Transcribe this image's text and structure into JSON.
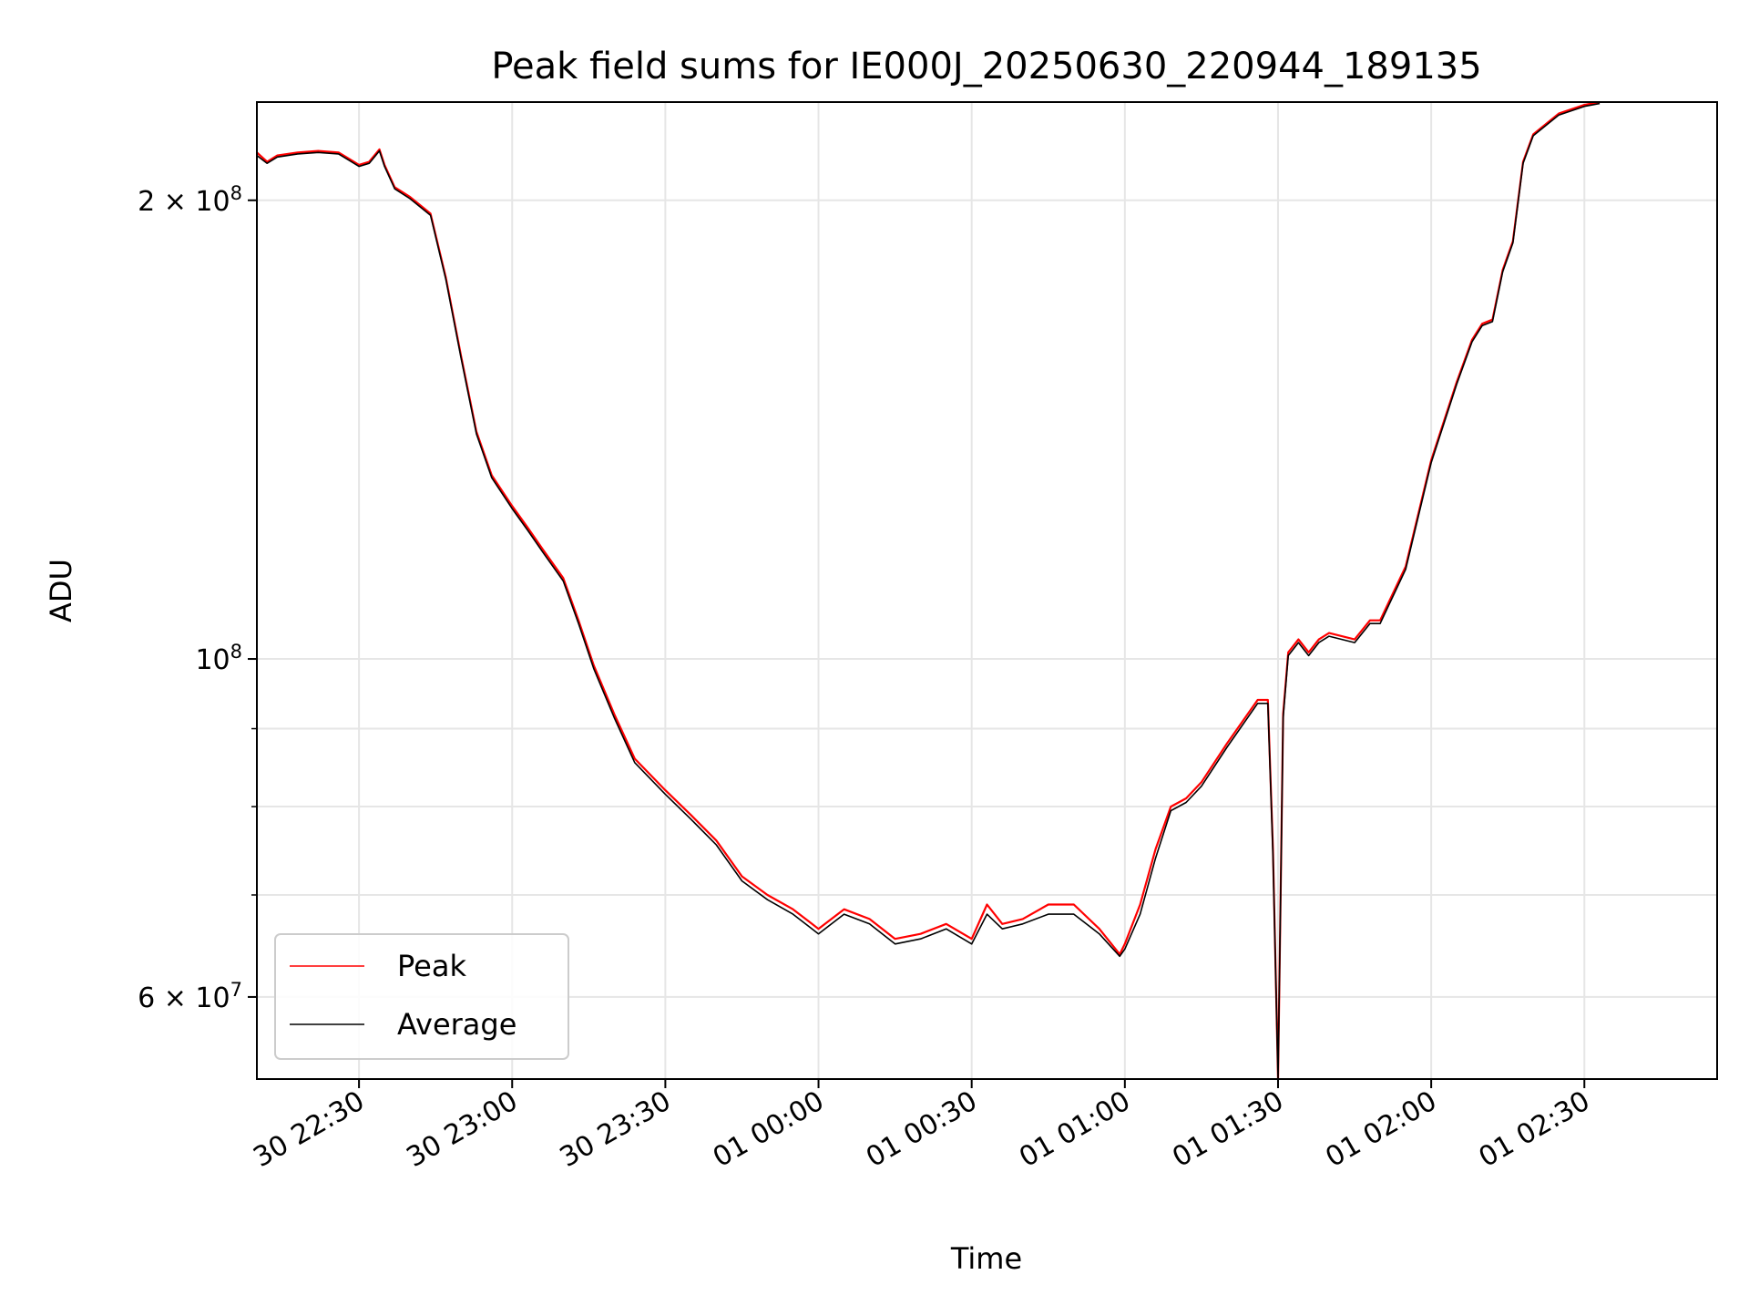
{
  "chart_data": {
    "type": "line",
    "title": "Peak field sums for IE000J_20250630_220944_189135",
    "xlabel": "Time",
    "ylabel": "ADU",
    "yscale": "log",
    "grid": true,
    "legend_position": "lower-left",
    "xlim": [
      "2025-06-30T22:10",
      "2025-07-01T02:56"
    ],
    "ylim": [
      53000000,
      232000000
    ],
    "x_ticks": [
      {
        "value": "2025-06-30T22:30",
        "label": "30 22:30"
      },
      {
        "value": "2025-06-30T23:00",
        "label": "30 23:00"
      },
      {
        "value": "2025-06-30T23:30",
        "label": "30 23:30"
      },
      {
        "value": "2025-07-01T00:00",
        "label": "01 00:00"
      },
      {
        "value": "2025-07-01T00:30",
        "label": "01 00:30"
      },
      {
        "value": "2025-07-01T01:00",
        "label": "01 01:00"
      },
      {
        "value": "2025-07-01T01:30",
        "label": "01 01:30"
      },
      {
        "value": "2025-07-01T02:00",
        "label": "01 02:00"
      },
      {
        "value": "2025-07-01T02:30",
        "label": "01 02:30"
      }
    ],
    "y_ticks": [
      {
        "value": 200000000,
        "label_base": "2 × 10",
        "label_exp": "8"
      },
      {
        "value": 100000000,
        "label_base": "10",
        "label_exp": "8"
      },
      {
        "value": 60000000,
        "label_base": "6 × 10",
        "label_exp": "7"
      }
    ],
    "y_minor_ticks": [
      70000000,
      80000000,
      90000000
    ],
    "series": [
      {
        "name": "Peak",
        "color": "#ff0000",
        "x": [
          "2025-06-30T22:10",
          "2025-06-30T22:12",
          "2025-06-30T22:14",
          "2025-06-30T22:18",
          "2025-06-30T22:22",
          "2025-06-30T22:26",
          "2025-06-30T22:30",
          "2025-06-30T22:32",
          "2025-06-30T22:34",
          "2025-06-30T22:35",
          "2025-06-30T22:37",
          "2025-06-30T22:40",
          "2025-06-30T22:44",
          "2025-06-30T22:47",
          "2025-06-30T22:50",
          "2025-06-30T22:53",
          "2025-06-30T22:56",
          "2025-06-30T23:00",
          "2025-06-30T23:03",
          "2025-06-30T23:06",
          "2025-06-30T23:10",
          "2025-06-30T23:13",
          "2025-06-30T23:16",
          "2025-06-30T23:20",
          "2025-06-30T23:24",
          "2025-06-30T23:30",
          "2025-06-30T23:35",
          "2025-06-30T23:40",
          "2025-06-30T23:45",
          "2025-06-30T23:50",
          "2025-06-30T23:55",
          "2025-07-01T00:00",
          "2025-07-01T00:05",
          "2025-07-01T00:10",
          "2025-07-01T00:15",
          "2025-07-01T00:20",
          "2025-07-01T00:25",
          "2025-07-01T00:30",
          "2025-07-01T00:33",
          "2025-07-01T00:36",
          "2025-07-01T00:40",
          "2025-07-01T00:45",
          "2025-07-01T00:50",
          "2025-07-01T00:55",
          "2025-07-01T00:59",
          "2025-07-01T01:00",
          "2025-07-01T01:03",
          "2025-07-01T01:06",
          "2025-07-01T01:09",
          "2025-07-01T01:12",
          "2025-07-01T01:15",
          "2025-07-01T01:20",
          "2025-07-01T01:26",
          "2025-07-01T01:28",
          "2025-07-01T01:29",
          "2025-07-01T01:30",
          "2025-07-01T01:31",
          "2025-07-01T01:32",
          "2025-07-01T01:34",
          "2025-07-01T01:36",
          "2025-07-01T01:38",
          "2025-07-01T01:40",
          "2025-07-01T01:45",
          "2025-07-01T01:48",
          "2025-07-01T01:50",
          "2025-07-01T01:55",
          "2025-07-01T02:00",
          "2025-07-01T02:05",
          "2025-07-01T02:08",
          "2025-07-01T02:10",
          "2025-07-01T02:12",
          "2025-07-01T02:14",
          "2025-07-01T02:16",
          "2025-07-01T02:18",
          "2025-07-01T02:20",
          "2025-07-01T02:25",
          "2025-07-01T02:30",
          "2025-07-01T02:33"
        ],
        "y": [
          215000000,
          212000000,
          214000000,
          215000000,
          215500000,
          215000000,
          211000000,
          212000000,
          216000000,
          211000000,
          204000000,
          201000000,
          196000000,
          178000000,
          158000000,
          141000000,
          132000000,
          126000000,
          122000000,
          118000000,
          113000000,
          106000000,
          99000000,
          92000000,
          86000000,
          82000000,
          79000000,
          76000000,
          72000000,
          70000000,
          68500000,
          66500000,
          68500000,
          67500000,
          65500000,
          66000000,
          67000000,
          65500000,
          69000000,
          67000000,
          67500000,
          69000000,
          69000000,
          66500000,
          64000000,
          65000000,
          69000000,
          75000000,
          80000000,
          81000000,
          83000000,
          88000000,
          94000000,
          94000000,
          75000000,
          52500000,
          92000000,
          101000000,
          103000000,
          101000000,
          103000000,
          104000000,
          103000000,
          106000000,
          106000000,
          115000000,
          135000000,
          152000000,
          162000000,
          166000000,
          167000000,
          180000000,
          188000000,
          212000000,
          221000000,
          228000000,
          231000000,
          232000000
        ]
      },
      {
        "name": "Average",
        "color": "#000000",
        "x": [
          "2025-06-30T22:10",
          "2025-06-30T22:12",
          "2025-06-30T22:14",
          "2025-06-30T22:18",
          "2025-06-30T22:22",
          "2025-06-30T22:26",
          "2025-06-30T22:30",
          "2025-06-30T22:32",
          "2025-06-30T22:34",
          "2025-06-30T22:35",
          "2025-06-30T22:37",
          "2025-06-30T22:40",
          "2025-06-30T22:44",
          "2025-06-30T22:47",
          "2025-06-30T22:50",
          "2025-06-30T22:53",
          "2025-06-30T22:56",
          "2025-06-30T23:00",
          "2025-06-30T23:03",
          "2025-06-30T23:06",
          "2025-06-30T23:10",
          "2025-06-30T23:13",
          "2025-06-30T23:16",
          "2025-06-30T23:20",
          "2025-06-30T23:24",
          "2025-06-30T23:30",
          "2025-06-30T23:35",
          "2025-06-30T23:40",
          "2025-06-30T23:45",
          "2025-06-30T23:50",
          "2025-06-30T23:55",
          "2025-07-01T00:00",
          "2025-07-01T00:05",
          "2025-07-01T00:10",
          "2025-07-01T00:15",
          "2025-07-01T00:20",
          "2025-07-01T00:25",
          "2025-07-01T00:30",
          "2025-07-01T00:33",
          "2025-07-01T00:36",
          "2025-07-01T00:40",
          "2025-07-01T00:45",
          "2025-07-01T00:50",
          "2025-07-01T00:55",
          "2025-07-01T00:59",
          "2025-07-01T01:00",
          "2025-07-01T01:03",
          "2025-07-01T01:06",
          "2025-07-01T01:09",
          "2025-07-01T01:12",
          "2025-07-01T01:15",
          "2025-07-01T01:20",
          "2025-07-01T01:26",
          "2025-07-01T01:28",
          "2025-07-01T01:29",
          "2025-07-01T01:30",
          "2025-07-01T01:31",
          "2025-07-01T01:32",
          "2025-07-01T01:34",
          "2025-07-01T01:36",
          "2025-07-01T01:38",
          "2025-07-01T01:40",
          "2025-07-01T01:45",
          "2025-07-01T01:48",
          "2025-07-01T01:50",
          "2025-07-01T01:55",
          "2025-07-01T02:00",
          "2025-07-01T02:05",
          "2025-07-01T02:08",
          "2025-07-01T02:10",
          "2025-07-01T02:12",
          "2025-07-01T02:14",
          "2025-07-01T02:16",
          "2025-07-01T02:18",
          "2025-07-01T02:20",
          "2025-07-01T02:25",
          "2025-07-01T02:30",
          "2025-07-01T02:33"
        ],
        "y": [
          214000000,
          211500000,
          213500000,
          214500000,
          215000000,
          214500000,
          210500000,
          211500000,
          215500000,
          210500000,
          203500000,
          200500000,
          195500000,
          177500000,
          157500000,
          140500000,
          131500000,
          125500000,
          121500000,
          117500000,
          112500000,
          105500000,
          98500000,
          91500000,
          85500000,
          81500000,
          78500000,
          75500000,
          71500000,
          69500000,
          68000000,
          66000000,
          68000000,
          67000000,
          65000000,
          65500000,
          66500000,
          65000000,
          68000000,
          66500000,
          67000000,
          68000000,
          68000000,
          66000000,
          63800000,
          64500000,
          68000000,
          74000000,
          79500000,
          80500000,
          82500000,
          87500000,
          93500000,
          93500000,
          74500000,
          52800000,
          91500000,
          100500000,
          102500000,
          100500000,
          102500000,
          103500000,
          102500000,
          105500000,
          105500000,
          114500000,
          134500000,
          151500000,
          161500000,
          165500000,
          166500000,
          179500000,
          187500000,
          211500000,
          220500000,
          227500000,
          230500000,
          231500000
        ]
      }
    ]
  }
}
